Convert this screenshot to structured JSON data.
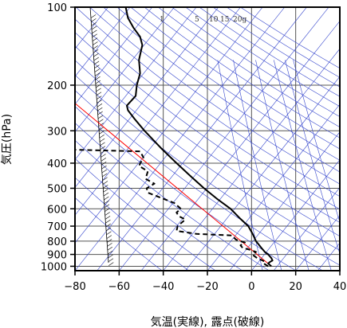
{
  "chart_data": {
    "type": "line",
    "title": "",
    "xlabel": "気温(実線), 露点(破線)",
    "ylabel": "気圧(hPa)",
    "xlim": [
      -80,
      40
    ],
    "ylim": [
      1040,
      100
    ],
    "y_scale": "log",
    "grid": true,
    "x_ticks": [
      -80,
      -60,
      -40,
      -20,
      0,
      20,
      40
    ],
    "x_tick_labels": [
      "−80",
      "−60",
      "−40",
      "−20",
      "0",
      "20",
      "40"
    ],
    "y_ticks": [
      100,
      200,
      300,
      400,
      500,
      600,
      700,
      800,
      900,
      1000
    ],
    "mixing_ratio_labels": [
      "1",
      "5",
      "10",
      "15",
      "20g"
    ],
    "series": [
      {
        "role": "temperature",
        "style": "solid",
        "color": "#000000",
        "points": [
          [
            1000,
            9.0
          ],
          [
            975,
            7.5
          ],
          [
            960,
            8.5
          ],
          [
            950,
            9.5
          ],
          [
            930,
            9.0
          ],
          [
            910,
            8.0
          ],
          [
            900,
            7.5
          ],
          [
            880,
            6.0
          ],
          [
            860,
            5.0
          ],
          [
            850,
            4.5
          ],
          [
            800,
            2.0
          ],
          [
            750,
            0.5
          ],
          [
            700,
            -1.5
          ],
          [
            650,
            -5.5
          ],
          [
            600,
            -9.5
          ],
          [
            550,
            -15.5
          ],
          [
            500,
            -21.5
          ],
          [
            450,
            -27.5
          ],
          [
            400,
            -34.0
          ],
          [
            350,
            -41.0
          ],
          [
            300,
            -48.5
          ],
          [
            270,
            -53.0
          ],
          [
            250,
            -56.0
          ],
          [
            240,
            -56.5
          ],
          [
            220,
            -52.5
          ],
          [
            200,
            -52.0
          ],
          [
            180,
            -50.5
          ],
          [
            160,
            -51.0
          ],
          [
            140,
            -49.5
          ],
          [
            130,
            -50.5
          ],
          [
            120,
            -53.5
          ],
          [
            110,
            -56.0
          ],
          [
            100,
            -57.0
          ]
        ]
      },
      {
        "role": "dewpoint",
        "style": "dashed",
        "color": "#000000",
        "points": [
          [
            1000,
            7.5
          ],
          [
            975,
            5.5
          ],
          [
            960,
            6.0
          ],
          [
            950,
            5.0
          ],
          [
            930,
            2.5
          ],
          [
            910,
            1.0
          ],
          [
            900,
            0.5
          ],
          [
            880,
            2.0
          ],
          [
            860,
            -1.5
          ],
          [
            850,
            -4.0
          ],
          [
            830,
            -5.0
          ],
          [
            810,
            -3.0
          ],
          [
            790,
            -7.0
          ],
          [
            760,
            -9.0
          ],
          [
            750,
            -25.0
          ],
          [
            730,
            -34.0
          ],
          [
            700,
            -33.5
          ],
          [
            660,
            -30.0
          ],
          [
            640,
            -33.0
          ],
          [
            620,
            -34.0
          ],
          [
            600,
            -32.0
          ],
          [
            570,
            -35.0
          ],
          [
            540,
            -42.0
          ],
          [
            520,
            -47.0
          ],
          [
            500,
            -47.5
          ],
          [
            480,
            -44.0
          ],
          [
            460,
            -48.0
          ],
          [
            430,
            -47.0
          ],
          [
            410,
            -51.0
          ],
          [
            380,
            -49.0
          ],
          [
            360,
            -50.5
          ],
          [
            355,
            -80.0
          ]
        ]
      }
    ],
    "reference_lines": [
      {
        "name": "lifted-parcel",
        "color": "#ff0000",
        "from": [
          1000,
          9.0
        ],
        "to": [
          235,
          -80.0
        ]
      }
    ]
  }
}
